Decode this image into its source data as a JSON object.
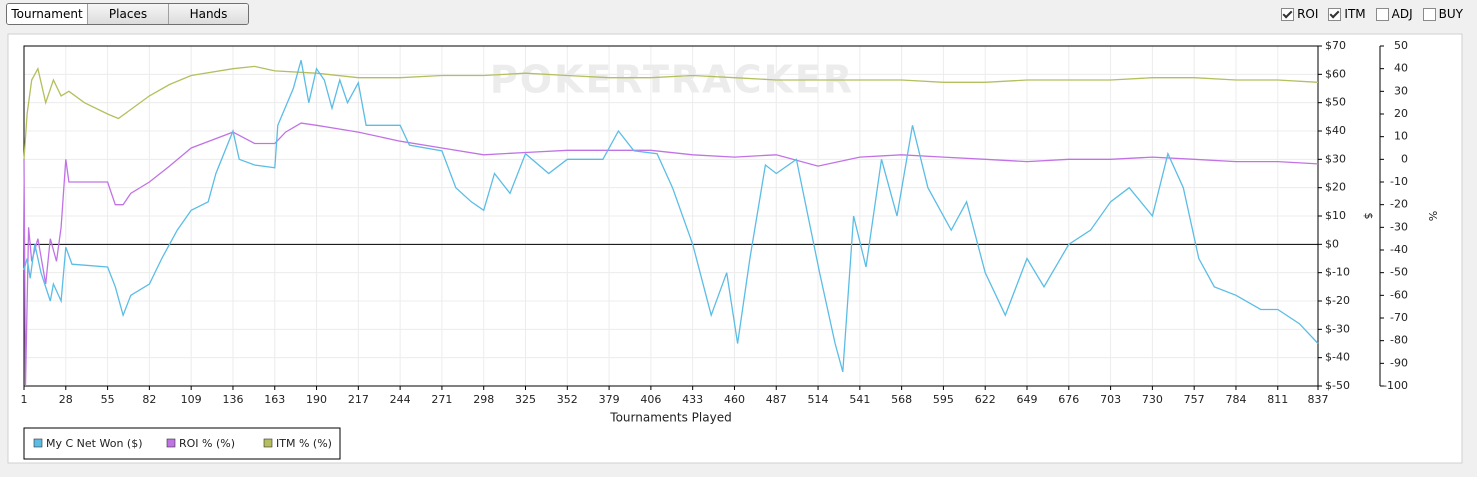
{
  "tabs": [
    "Tournament",
    "Places",
    "Hands"
  ],
  "checkboxes": [
    {
      "label": "ROI",
      "checked": true
    },
    {
      "label": "ITM",
      "checked": true
    },
    {
      "label": "ADJ",
      "checked": false
    },
    {
      "label": "BUY",
      "checked": false
    }
  ],
  "watermark": "POKERTRACKER",
  "chart_data": {
    "type": "line",
    "xlabel": "Tournaments Played",
    "ylabel": "$",
    "y2label": "%",
    "xlim": [
      1,
      837
    ],
    "xticks": [
      1,
      28,
      55,
      82,
      109,
      136,
      163,
      190,
      217,
      244,
      271,
      298,
      325,
      352,
      379,
      406,
      433,
      460,
      487,
      514,
      541,
      568,
      595,
      622,
      649,
      676,
      703,
      730,
      757,
      784,
      811,
      837
    ],
    "ylim": [
      -50,
      70
    ],
    "yticks": [
      {
        "value": -50,
        "label": "$-50"
      },
      {
        "value": -40,
        "label": "$-40"
      },
      {
        "value": -30,
        "label": "$-30"
      },
      {
        "value": -20,
        "label": "$-20"
      },
      {
        "value": -10,
        "label": "$-10"
      },
      {
        "value": 0,
        "label": "$0"
      },
      {
        "value": 10,
        "label": "$10"
      },
      {
        "value": 20,
        "label": "$20"
      },
      {
        "value": 30,
        "label": "$30"
      },
      {
        "value": 40,
        "label": "$40"
      },
      {
        "value": 50,
        "label": "$50"
      },
      {
        "value": 60,
        "label": "$60"
      },
      {
        "value": 70,
        "label": "$70"
      }
    ],
    "y2lim": [
      -100,
      50
    ],
    "y2ticks": [
      -100,
      -90,
      -80,
      -70,
      -60,
      -50,
      -40,
      -30,
      -20,
      -10,
      0,
      10,
      20,
      30,
      40,
      50
    ],
    "grid": true,
    "legend": "bottom-left",
    "series": [
      {
        "name": "My C Net Won ($)",
        "color": "#5bbde6",
        "x": [
          1,
          3,
          5,
          8,
          12,
          18,
          20,
          25,
          28,
          32,
          55,
          60,
          65,
          70,
          82,
          90,
          95,
          100,
          109,
          120,
          125,
          136,
          140,
          150,
          163,
          165,
          175,
          180,
          185,
          190,
          195,
          200,
          205,
          210,
          217,
          222,
          244,
          250,
          271,
          280,
          290,
          298,
          305,
          315,
          325,
          340,
          352,
          375,
          385,
          395,
          410,
          420,
          433,
          445,
          455,
          462,
          470,
          480,
          487,
          500,
          515,
          525,
          530,
          537,
          545,
          555,
          565,
          575,
          585,
          600,
          610,
          622,
          635,
          649,
          660,
          676,
          690,
          703,
          715,
          730,
          740,
          750,
          760,
          770,
          784,
          800,
          811,
          825,
          837
        ],
        "values": [
          -9,
          -5,
          -12,
          0,
          -10,
          -20,
          -14,
          -20,
          -1,
          -7,
          -8,
          -15,
          -25,
          -18,
          -14,
          -5,
          0,
          5,
          12,
          15,
          25,
          40,
          30,
          28,
          27,
          42,
          55,
          65,
          50,
          62,
          58,
          48,
          58,
          50,
          57,
          42,
          42,
          35,
          33,
          20,
          15,
          12,
          25,
          18,
          32,
          25,
          30,
          30,
          40,
          33,
          32,
          20,
          0,
          -25,
          -10,
          -35,
          -5,
          28,
          25,
          30,
          -10,
          -35,
          -45,
          10,
          -8,
          30,
          10,
          42,
          20,
          5,
          15,
          -10,
          -25,
          -5,
          -15,
          0,
          5,
          15,
          20,
          10,
          32,
          20,
          -5,
          -15,
          -18,
          -23,
          -23,
          -28,
          -35
        ]
      },
      {
        "name": "ROI % (%)",
        "color": "#c173e6",
        "axis": "y2",
        "x": [
          1,
          2,
          4,
          6,
          10,
          15,
          18,
          22,
          25,
          28,
          30,
          55,
          60,
          65,
          70,
          82,
          95,
          109,
          136,
          150,
          163,
          170,
          180,
          190,
          217,
          244,
          271,
          298,
          325,
          352,
          379,
          406,
          433,
          460,
          487,
          514,
          541,
          568,
          595,
          622,
          649,
          676,
          703,
          730,
          757,
          784,
          811,
          837
        ],
        "values": [
          0,
          -100,
          -30,
          -45,
          -35,
          -55,
          -35,
          -45,
          -30,
          0,
          -10,
          -10,
          -20,
          -20,
          -15,
          -10,
          -3,
          5,
          12,
          7,
          7,
          12,
          16,
          15,
          12,
          8,
          5,
          2,
          3,
          4,
          4,
          4,
          2,
          1,
          2,
          -3,
          1,
          2,
          1,
          0,
          -1,
          0,
          0,
          1,
          0,
          -1,
          -1,
          -2
        ]
      },
      {
        "name": "ITM % (%)",
        "color": "#b5bf5e",
        "axis": "y2",
        "x": [
          1,
          3,
          6,
          10,
          15,
          20,
          25,
          30,
          40,
          55,
          62,
          70,
          82,
          95,
          109,
          136,
          150,
          163,
          190,
          217,
          244,
          271,
          298,
          325,
          352,
          379,
          406,
          433,
          460,
          487,
          514,
          541,
          568,
          595,
          622,
          649,
          676,
          703,
          730,
          757,
          784,
          811,
          837
        ],
        "values": [
          0,
          20,
          35,
          40,
          25,
          35,
          28,
          30,
          25,
          20,
          18,
          22,
          28,
          33,
          37,
          40,
          41,
          39,
          38,
          36,
          36,
          37,
          37,
          38,
          37,
          36,
          36,
          37,
          36,
          35,
          35,
          35,
          35,
          34,
          34,
          35,
          35,
          35,
          36,
          36,
          35,
          35,
          34
        ]
      }
    ]
  }
}
